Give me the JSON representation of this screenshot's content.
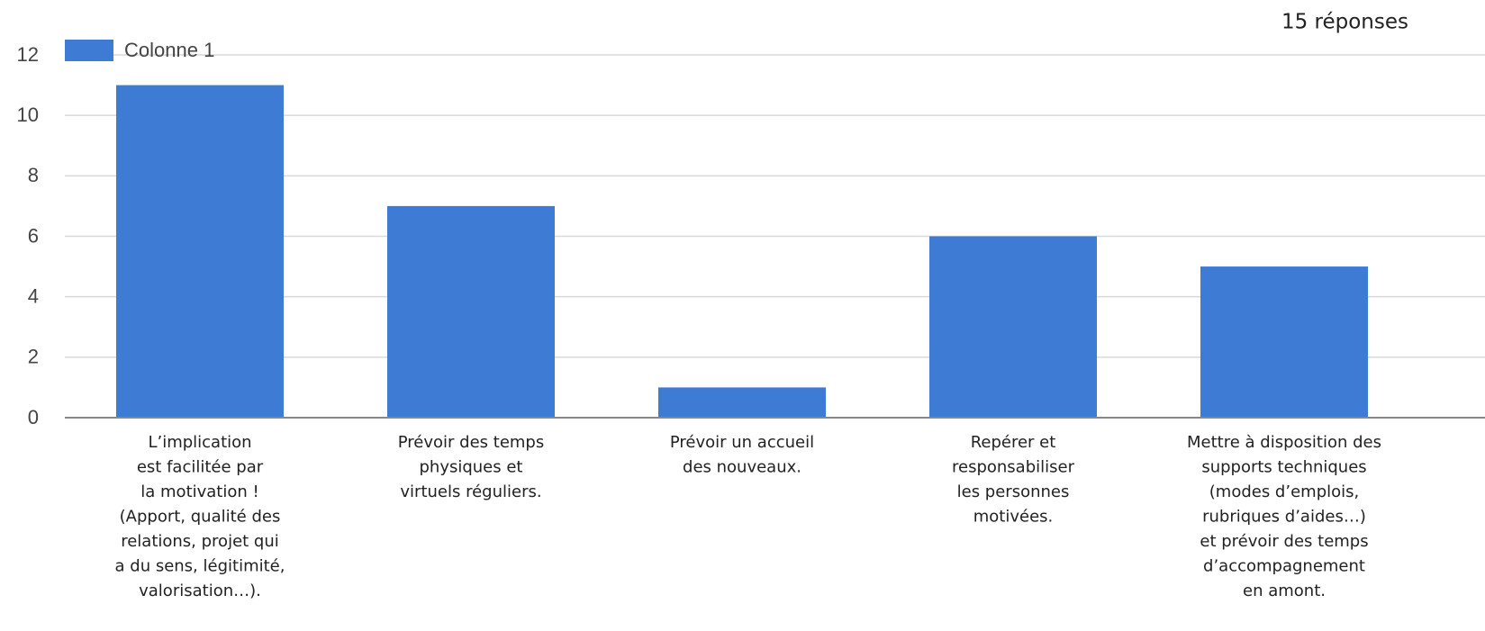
{
  "chart_data": {
    "type": "bar",
    "subtitle": "15 réponses",
    "categories": [
      "L’implication\nest facilitée par\nla motivation !\n(Apport, qualité des\nrelations, projet qui\na du sens, légitimité,\nvalorisation…).",
      "Prévoir des temps\nphysiques et\nvirtuels réguliers.",
      "Prévoir un accueil\ndes nouveaux.",
      "Repérer et\nresponsabiliser\nles personnes\nmotivées.",
      "Mettre à disposition des\nsupports techniques\n(modes d’emplois,\nrubriques d’aides…)\net prévoir des temps\nd’accompagnement\nen amont."
    ],
    "series": [
      {
        "name": "Colonne 1",
        "color": "#3e7bd4",
        "values": [
          11,
          7,
          1,
          6,
          5
        ]
      }
    ],
    "ylim": [
      0,
      12
    ],
    "yticks": [
      0,
      2,
      4,
      6,
      8,
      10,
      12
    ],
    "grid": true,
    "legend": "top-left"
  }
}
